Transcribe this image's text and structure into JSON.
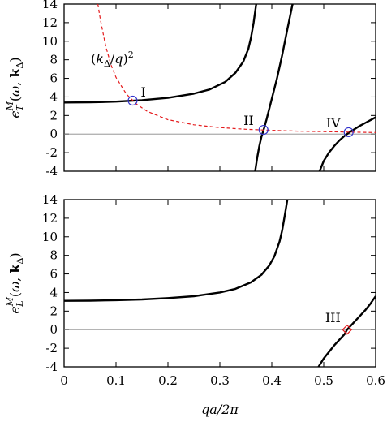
{
  "chart_data": [
    {
      "type": "line",
      "panel": "top",
      "ylabel": "ε_T^M(ω, k_Δ)",
      "xlim": [
        0,
        0.6
      ],
      "ylim": [
        -4,
        14
      ],
      "xticks": [
        "0",
        "0.1",
        "0.2",
        "0.3",
        "0.4",
        "0.5",
        "0.6"
      ],
      "yticks": [
        "-4",
        "-2",
        "0",
        "2",
        "4",
        "6",
        "8",
        "10",
        "12",
        "14"
      ],
      "series": [
        {
          "style": "solid-black",
          "x": [
            0.0,
            0.05,
            0.1,
            0.15,
            0.2,
            0.25,
            0.28,
            0.31,
            0.33,
            0.345,
            0.355,
            0.36,
            0.365,
            0.368,
            0.37
          ],
          "y": [
            3.4,
            3.42,
            3.5,
            3.65,
            3.9,
            4.35,
            4.8,
            5.6,
            6.6,
            7.8,
            9.2,
            10.4,
            12.0,
            13.2,
            14.0
          ]
        },
        {
          "style": "solid-black",
          "x": [
            0.368,
            0.372,
            0.376,
            0.38,
            0.385,
            0.39,
            0.395,
            0.4,
            0.41,
            0.42,
            0.43,
            0.44
          ],
          "y": [
            -4.0,
            -2.5,
            -1.3,
            -0.3,
            0.6,
            1.6,
            2.7,
            3.8,
            6.0,
            8.5,
            11.3,
            14.0
          ]
        },
        {
          "style": "solid-black",
          "x": [
            0.492,
            0.5,
            0.51,
            0.52,
            0.53,
            0.54,
            0.55,
            0.56,
            0.57,
            0.58,
            0.59,
            0.6
          ],
          "y": [
            -4.0,
            -2.9,
            -2.0,
            -1.3,
            -0.7,
            -0.2,
            0.2,
            0.55,
            0.9,
            1.2,
            1.5,
            1.8
          ]
        },
        {
          "name": "(k_Δ/q)^2",
          "style": "dashed-red",
          "x": [
            0.065,
            0.07,
            0.08,
            0.09,
            0.1,
            0.12,
            0.14,
            0.16,
            0.2,
            0.25,
            0.3,
            0.35,
            0.4,
            0.45,
            0.5,
            0.55,
            0.6
          ],
          "y": [
            14.0,
            12.3,
            9.5,
            7.5,
            6.1,
            4.3,
            3.2,
            2.45,
            1.55,
            1.0,
            0.7,
            0.52,
            0.4,
            0.32,
            0.26,
            0.21,
            0.17
          ]
        }
      ],
      "markers": [
        {
          "label": "I",
          "shape": "circle",
          "x": 0.132,
          "y": 3.6
        },
        {
          "label": "II",
          "shape": "circle",
          "x": 0.384,
          "y": 0.45
        },
        {
          "label": "IV",
          "shape": "circle",
          "x": 0.548,
          "y": 0.2
        }
      ],
      "annotation": "(k_Δ/q)^2"
    },
    {
      "type": "line",
      "panel": "bottom",
      "ylabel": "ε_L^M(ω, k_Δ)",
      "xlabel": "qa/2π",
      "xlim": [
        0,
        0.6
      ],
      "ylim": [
        -4,
        14
      ],
      "xticks": [
        "0",
        "0.1",
        "0.2",
        "0.3",
        "0.4",
        "0.5",
        "0.6"
      ],
      "yticks": [
        "-4",
        "-2",
        "0",
        "2",
        "4",
        "6",
        "8",
        "10",
        "12",
        "14"
      ],
      "series": [
        {
          "style": "solid-black",
          "x": [
            0.0,
            0.05,
            0.1,
            0.15,
            0.2,
            0.25,
            0.3,
            0.33,
            0.36,
            0.38,
            0.395,
            0.405,
            0.415,
            0.42,
            0.425,
            0.43
          ],
          "y": [
            3.1,
            3.12,
            3.17,
            3.25,
            3.4,
            3.6,
            4.0,
            4.4,
            5.1,
            5.9,
            6.9,
            7.9,
            9.5,
            10.7,
            12.3,
            14.0
          ]
        },
        {
          "style": "solid-black",
          "x": [
            0.49,
            0.5,
            0.51,
            0.52,
            0.53,
            0.54,
            0.545,
            0.55,
            0.56,
            0.57,
            0.58,
            0.59,
            0.6
          ],
          "y": [
            -4.0,
            -3.1,
            -2.4,
            -1.7,
            -1.1,
            -0.5,
            0.0,
            0.3,
            0.9,
            1.5,
            2.1,
            2.8,
            3.6
          ]
        }
      ],
      "markers": [
        {
          "label": "III",
          "shape": "diamond",
          "x": 0.545,
          "y": 0.0
        }
      ]
    }
  ]
}
